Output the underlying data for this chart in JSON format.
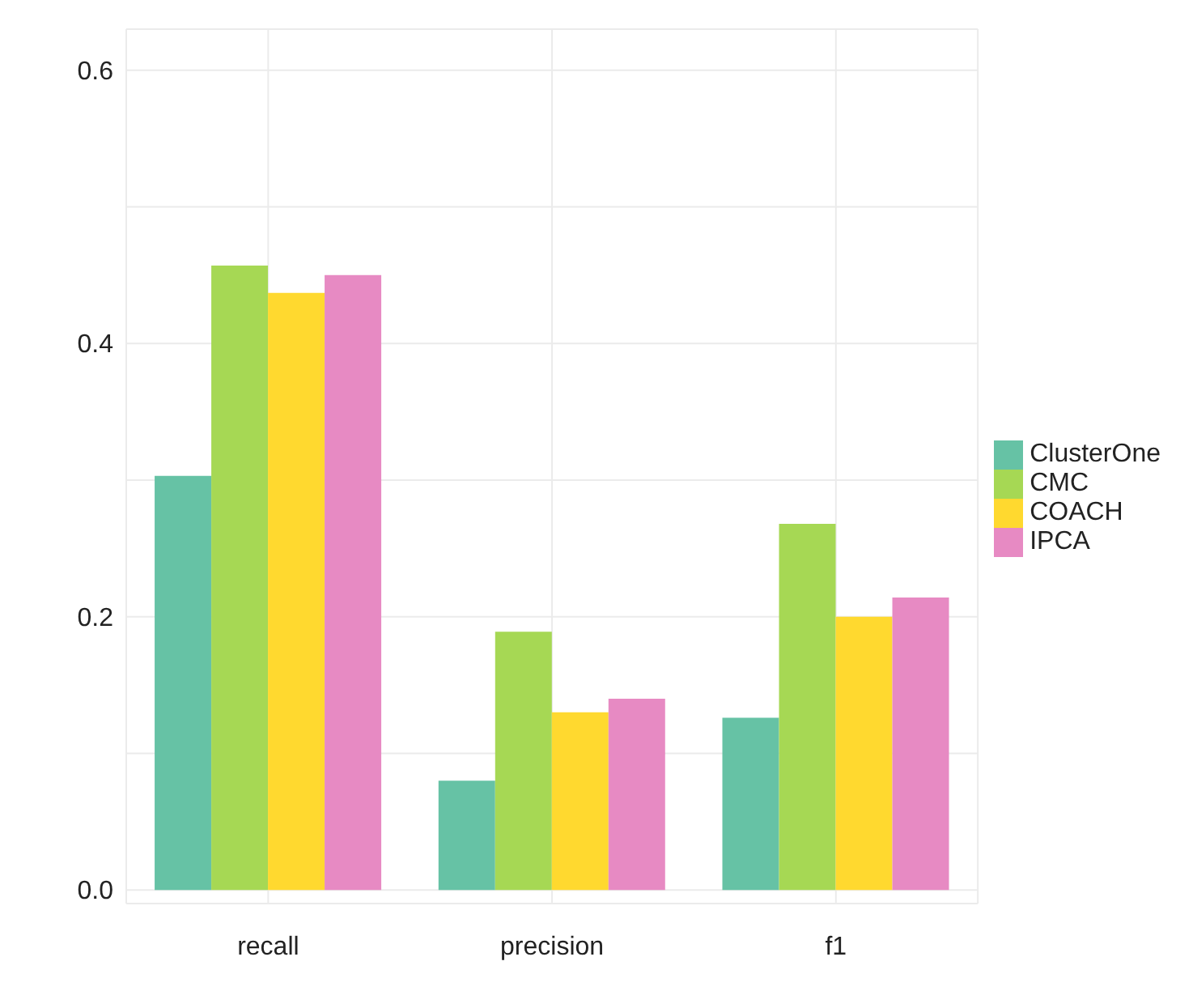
{
  "chart_data": {
    "type": "bar",
    "categories": [
      "recall",
      "precision",
      "f1"
    ],
    "series": [
      {
        "name": "ClusterOne",
        "color": "#66c2a5",
        "values": [
          0.303,
          0.08,
          0.126
        ]
      },
      {
        "name": "CMC",
        "color": "#a6d854",
        "values": [
          0.457,
          0.189,
          0.268
        ]
      },
      {
        "name": "COACH",
        "color": "#ffd92f",
        "values": [
          0.437,
          0.13,
          0.2
        ]
      },
      {
        "name": "IPCA",
        "color": "#e78ac3",
        "values": [
          0.45,
          0.14,
          0.214
        ]
      }
    ],
    "ylim": [
      -0.01,
      0.63
    ],
    "yticks": [
      {
        "value": 0,
        "label": "0.0"
      },
      {
        "value": 0.1,
        "label": null
      },
      {
        "value": 0.2,
        "label": "0.2"
      },
      {
        "value": 0.3,
        "label": null
      },
      {
        "value": 0.4,
        "label": "0.4"
      },
      {
        "value": 0.5,
        "label": null
      },
      {
        "value": 0.6,
        "label": "0.6"
      }
    ],
    "grid": true,
    "legend": "right"
  }
}
